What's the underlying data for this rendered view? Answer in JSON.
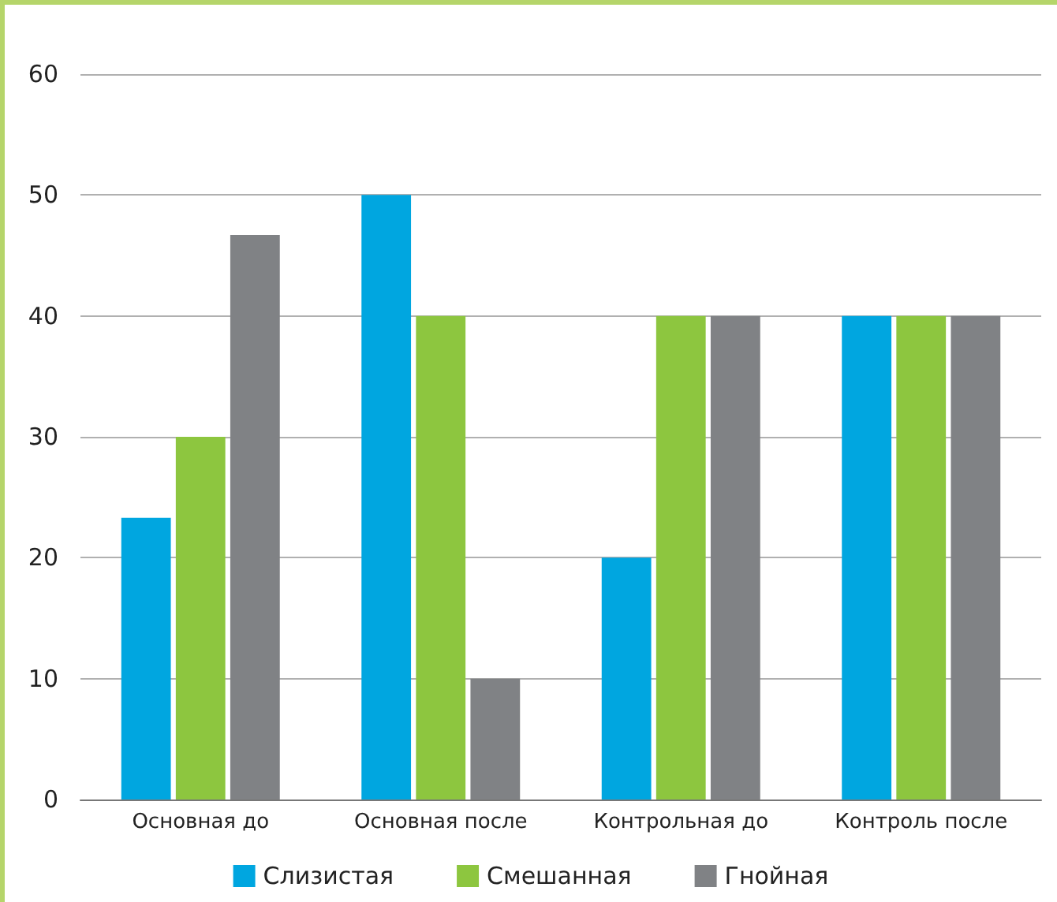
{
  "chart_data": {
    "type": "bar",
    "categories": [
      "Основная до",
      "Основная после",
      "Контрольная до",
      "Контроль после"
    ],
    "series": [
      {
        "name": "Слизистая",
        "color": "#00a6e0",
        "values": [
          23.3,
          50,
          20,
          40
        ]
      },
      {
        "name": "Смешанная",
        "color": "#8dc63f",
        "values": [
          30,
          40,
          40,
          40
        ]
      },
      {
        "name": "Гнойная",
        "color": "#808285",
        "values": [
          46.7,
          10,
          40,
          40
        ]
      }
    ],
    "ylim": [
      0,
      60
    ],
    "yticks": [
      0,
      10,
      20,
      30,
      40,
      50,
      60
    ],
    "grid": "y",
    "legend": "bottom"
  }
}
